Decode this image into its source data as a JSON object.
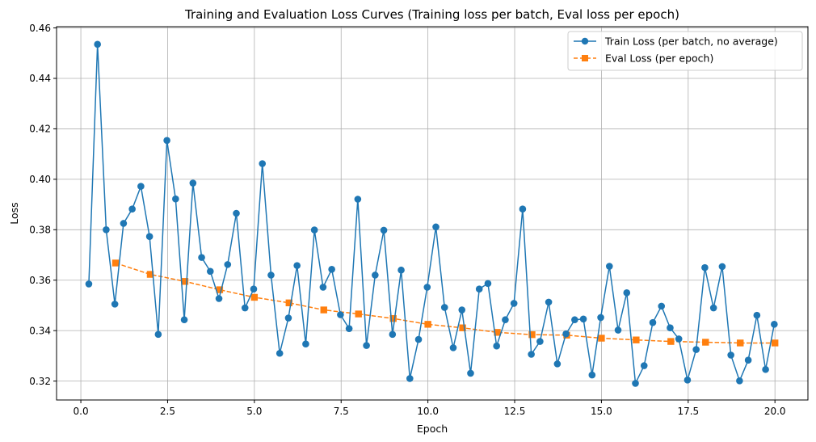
{
  "chart_data": {
    "type": "line",
    "title": "Training and Evaluation Loss Curves (Training loss per batch, Eval loss per epoch)",
    "xlabel": "Epoch",
    "ylabel": "Loss",
    "xlim": [
      -0.7,
      20.95
    ],
    "ylim": [
      0.3125,
      0.4605
    ],
    "xticks": [
      0.0,
      2.5,
      5.0,
      7.5,
      10.0,
      12.5,
      15.0,
      17.5,
      20.0
    ],
    "xtick_labels": [
      "0.0",
      "2.5",
      "5.0",
      "7.5",
      "10.0",
      "12.5",
      "15.0",
      "17.5",
      "20.0"
    ],
    "yticks": [
      0.32,
      0.34,
      0.36,
      0.38,
      0.4,
      0.42,
      0.44,
      0.46
    ],
    "ytick_labels": [
      "0.32",
      "0.34",
      "0.36",
      "0.38",
      "0.40",
      "0.42",
      "0.44",
      "0.46"
    ],
    "grid": true,
    "legend_position": "top-right",
    "series": [
      {
        "name": "Train Loss (per batch, no average)",
        "color": "#1f77b4",
        "marker": "circle",
        "linestyle": "solid",
        "x": [
          0.23,
          0.48,
          0.73,
          0.98,
          1.23,
          1.48,
          1.73,
          1.98,
          2.23,
          2.48,
          2.73,
          2.98,
          3.23,
          3.48,
          3.73,
          3.98,
          4.23,
          4.48,
          4.73,
          4.98,
          5.23,
          5.48,
          5.73,
          5.98,
          6.23,
          6.48,
          6.73,
          6.98,
          7.23,
          7.48,
          7.73,
          7.98,
          8.23,
          8.48,
          8.73,
          8.98,
          9.23,
          9.48,
          9.73,
          9.98,
          10.23,
          10.48,
          10.73,
          10.98,
          11.23,
          11.48,
          11.73,
          11.98,
          12.23,
          12.48,
          12.73,
          12.98,
          13.23,
          13.48,
          13.73,
          13.98,
          14.23,
          14.48,
          14.73,
          14.98,
          15.23,
          15.48,
          15.73,
          15.98,
          16.23,
          16.48,
          16.73,
          16.98,
          17.23,
          17.48,
          17.73,
          17.98,
          18.23,
          18.48,
          18.73,
          18.98,
          19.23,
          19.48,
          19.73,
          19.98
        ],
        "values": [
          0.3585,
          0.4535,
          0.38,
          0.3505,
          0.3825,
          0.3882,
          0.3972,
          0.3773,
          0.3385,
          0.4154,
          0.3922,
          0.3443,
          0.3985,
          0.369,
          0.3635,
          0.3527,
          0.3662,
          0.3865,
          0.349,
          0.3565,
          0.4062,
          0.362,
          0.331,
          0.345,
          0.3658,
          0.3347,
          0.3799,
          0.3572,
          0.3643,
          0.3463,
          0.3408,
          0.3921,
          0.3341,
          0.362,
          0.3798,
          0.3385,
          0.364,
          0.321,
          0.3365,
          0.3572,
          0.3811,
          0.3492,
          0.3332,
          0.3482,
          0.3231,
          0.3565,
          0.3587,
          0.3339,
          0.3443,
          0.3508,
          0.3882,
          0.3306,
          0.3357,
          0.3513,
          0.3268,
          0.3387,
          0.3443,
          0.3446,
          0.3224,
          0.3452,
          0.3655,
          0.3402,
          0.355,
          0.3191,
          0.3261,
          0.3432,
          0.3497,
          0.3411,
          0.3367,
          0.3204,
          0.3325,
          0.365,
          0.349,
          0.3654,
          0.3303,
          0.3201,
          0.3283,
          0.3461,
          0.3246,
          0.3425
        ]
      },
      {
        "name": "Eval Loss (per epoch)",
        "color": "#ff7f0e",
        "marker": "square",
        "linestyle": "dashed",
        "x": [
          1,
          2,
          3,
          4,
          5,
          6,
          7,
          8,
          9,
          10,
          11,
          12,
          13,
          14,
          15,
          16,
          17,
          18,
          19,
          20
        ],
        "values": [
          0.3668,
          0.3623,
          0.3595,
          0.3562,
          0.3532,
          0.351,
          0.3482,
          0.3466,
          0.3448,
          0.3425,
          0.3411,
          0.3393,
          0.3384,
          0.3382,
          0.337,
          0.3363,
          0.3357,
          0.3354,
          0.3351,
          0.3351
        ]
      }
    ]
  }
}
